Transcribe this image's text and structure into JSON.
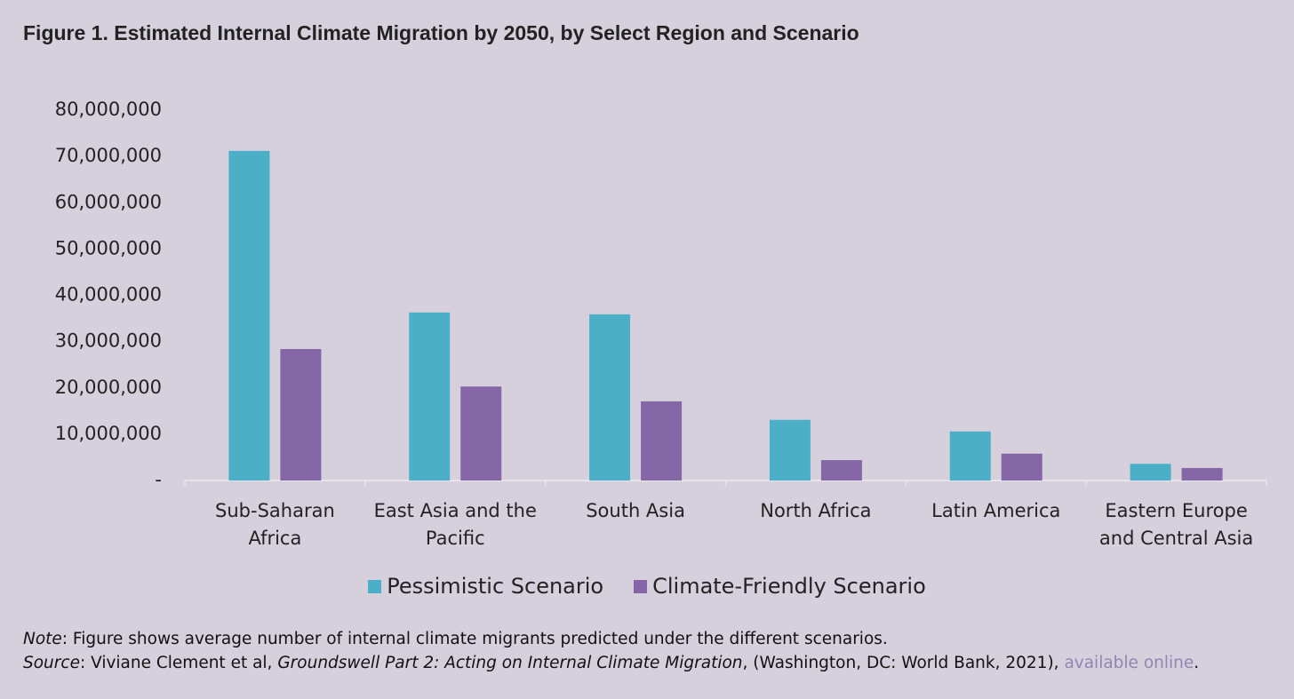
{
  "chart_data": {
    "type": "bar",
    "title": "Figure 1. Estimated Internal Climate Migration by 2050, by Select Region and Scenario",
    "categories": [
      "Sub-Saharan Africa",
      "East Asia and the Pacific",
      "South Asia",
      "North Africa",
      "Latin America",
      "Eastern Europe and Central Asia"
    ],
    "series": [
      {
        "name": "Pessimistic Scenario",
        "color": "#4bafc8",
        "values": [
          71200000,
          36300000,
          35900000,
          13100000,
          10600000,
          3600000
        ]
      },
      {
        "name": "Climate-Friendly Scenario",
        "color": "#8566a6",
        "values": [
          28400000,
          20300000,
          17100000,
          4400000,
          5800000,
          2700000
        ]
      }
    ],
    "ylim": [
      0,
      80000000
    ],
    "yticks": [
      {
        "value": 0,
        "label": "-"
      },
      {
        "value": 10000000,
        "label": "10,000,000"
      },
      {
        "value": 20000000,
        "label": "20,000,000"
      },
      {
        "value": 30000000,
        "label": "30,000,000"
      },
      {
        "value": 40000000,
        "label": "40,000,000"
      },
      {
        "value": 50000000,
        "label": "50,000,000"
      },
      {
        "value": 60000000,
        "label": "60,000,000"
      },
      {
        "value": 70000000,
        "label": "70,000,000"
      },
      {
        "value": 80000000,
        "label": "80,000,000"
      }
    ],
    "grid": false,
    "legend": "bottom"
  },
  "footer": {
    "note": {
      "label": "Note",
      "text": ": Figure shows average number of internal climate migrants predicted under the different scenarios."
    },
    "source": {
      "label": "Source",
      "text1": ": Viviane Clement et al, ",
      "title": "Groundswell Part 2: Acting on Internal Climate Migration",
      "text2": ", (Washington, DC: World Bank, 2021), ",
      "link": "available online",
      "end": "."
    }
  }
}
